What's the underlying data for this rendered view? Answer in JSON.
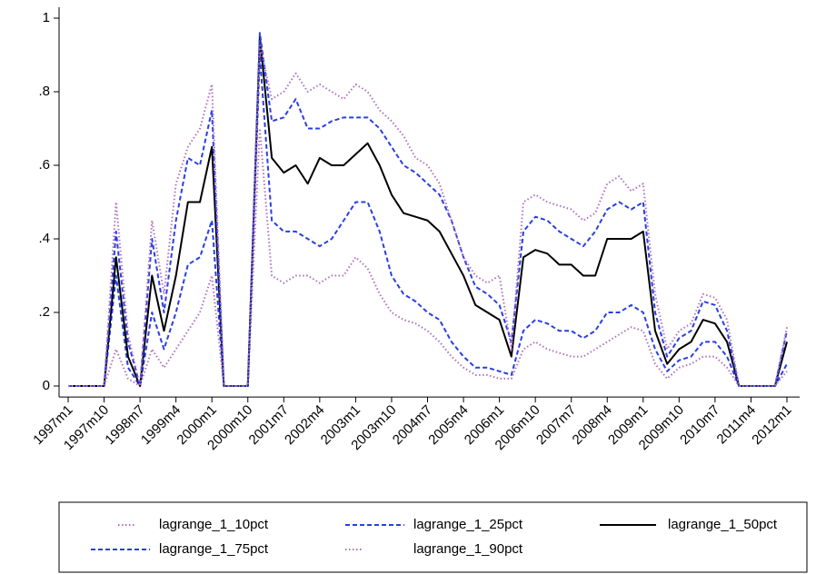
{
  "chart_data": {
    "type": "line",
    "categories": [
      "1997m1",
      null,
      null,
      "1997m10",
      null,
      null,
      "1998m7",
      null,
      null,
      "1999m4",
      null,
      null,
      "2000m1",
      null,
      null,
      "2000m10",
      null,
      null,
      "2001m7",
      null,
      null,
      "2002m4",
      null,
      null,
      "2003m1",
      null,
      null,
      "2003m10",
      null,
      null,
      "2004m7",
      null,
      null,
      "2005m4",
      null,
      null,
      "2006m1",
      null,
      null,
      "2006m10",
      null,
      null,
      "2007m7",
      null,
      null,
      "2008m4",
      null,
      null,
      "2009m1",
      null,
      null,
      "2009m10",
      null,
      null,
      "2010m7",
      null,
      null,
      "2011m4",
      null,
      null,
      "2012m1"
    ],
    "series": [
      {
        "name": "lagrange_1_10pct",
        "color": "#b070c0",
        "style": "dotted",
        "values": [
          0,
          0,
          0,
          0,
          0.1,
          0.02,
          0,
          0.1,
          0.05,
          0.1,
          0.15,
          0.2,
          0.3,
          0,
          0,
          0,
          0.7,
          0.3,
          0.28,
          0.3,
          0.3,
          0.28,
          0.3,
          0.3,
          0.35,
          0.32,
          0.25,
          0.2,
          0.18,
          0.17,
          0.15,
          0.12,
          0.08,
          0.05,
          0.03,
          0.03,
          0.02,
          0.02,
          0.1,
          0.12,
          0.1,
          0.09,
          0.08,
          0.08,
          0.1,
          0.12,
          0.14,
          0.16,
          0.15,
          0.06,
          0.02,
          0.05,
          0.06,
          0.08,
          0.08,
          0.05,
          0,
          0,
          0,
          0,
          0.04
        ]
      },
      {
        "name": "lagrange_1_25pct",
        "color": "#2a3fe0",
        "style": "dashed",
        "values": [
          0,
          0,
          0,
          0,
          0.3,
          0.05,
          0,
          0.2,
          0.1,
          0.2,
          0.33,
          0.35,
          0.45,
          0,
          0,
          0,
          0.9,
          0.45,
          0.42,
          0.42,
          0.4,
          0.38,
          0.4,
          0.45,
          0.5,
          0.5,
          0.42,
          0.3,
          0.25,
          0.23,
          0.2,
          0.18,
          0.12,
          0.08,
          0.05,
          0.05,
          0.04,
          0.03,
          0.15,
          0.18,
          0.17,
          0.15,
          0.15,
          0.13,
          0.15,
          0.2,
          0.2,
          0.22,
          0.2,
          0.1,
          0.04,
          0.07,
          0.08,
          0.12,
          0.12,
          0.08,
          0,
          0,
          0,
          0,
          0.06
        ]
      },
      {
        "name": "lagrange_1_50pct",
        "color": "#000000",
        "style": "solid",
        "values": [
          0,
          0,
          0,
          0,
          0.35,
          0.08,
          0,
          0.3,
          0.15,
          0.3,
          0.5,
          0.5,
          0.65,
          0,
          0,
          0,
          0.95,
          0.62,
          0.58,
          0.6,
          0.55,
          0.62,
          0.6,
          0.6,
          0.63,
          0.66,
          0.6,
          0.52,
          0.47,
          0.46,
          0.45,
          0.42,
          0.36,
          0.3,
          0.22,
          0.2,
          0.18,
          0.08,
          0.35,
          0.37,
          0.36,
          0.33,
          0.33,
          0.3,
          0.3,
          0.4,
          0.4,
          0.4,
          0.42,
          0.15,
          0.06,
          0.1,
          0.12,
          0.18,
          0.17,
          0.12,
          0,
          0,
          0,
          0,
          0.12
        ]
      },
      {
        "name": "lagrange_1_75pct",
        "color": "#2a3fe0",
        "style": "dashed",
        "values": [
          0,
          0,
          0,
          0,
          0.42,
          0.12,
          0,
          0.4,
          0.2,
          0.45,
          0.62,
          0.6,
          0.75,
          0,
          0,
          0,
          0.96,
          0.72,
          0.73,
          0.78,
          0.7,
          0.7,
          0.72,
          0.73,
          0.73,
          0.73,
          0.7,
          0.65,
          0.6,
          0.58,
          0.55,
          0.52,
          0.45,
          0.35,
          0.27,
          0.25,
          0.22,
          0.12,
          0.42,
          0.46,
          0.45,
          0.42,
          0.4,
          0.38,
          0.42,
          0.48,
          0.5,
          0.48,
          0.5,
          0.2,
          0.08,
          0.13,
          0.15,
          0.23,
          0.22,
          0.15,
          0,
          0,
          0,
          0,
          0.15
        ]
      },
      {
        "name": "lagrange_1_90pct",
        "color": "#b070c0",
        "style": "dotted",
        "values": [
          0,
          0,
          0,
          0,
          0.5,
          0.14,
          0,
          0.45,
          0.25,
          0.55,
          0.65,
          0.7,
          0.82,
          0,
          0,
          0,
          0.93,
          0.78,
          0.8,
          0.85,
          0.8,
          0.82,
          0.8,
          0.78,
          0.82,
          0.8,
          0.75,
          0.72,
          0.68,
          0.62,
          0.6,
          0.55,
          0.45,
          0.35,
          0.3,
          0.28,
          0.3,
          0.1,
          0.5,
          0.52,
          0.5,
          0.49,
          0.48,
          0.45,
          0.47,
          0.55,
          0.57,
          0.53,
          0.55,
          0.25,
          0.1,
          0.15,
          0.17,
          0.25,
          0.24,
          0.18,
          0,
          0,
          0,
          0,
          0.16
        ]
      }
    ],
    "ylim": [
      -0.03,
      1.03
    ],
    "yticks": [
      0,
      {
        "value": 0.2,
        "label": ".2"
      },
      {
        "value": 0.4,
        "label": ".4"
      },
      {
        "value": 0.6,
        "label": ".6"
      },
      {
        "value": 0.8,
        "label": ".8"
      },
      1
    ],
    "grid": false
  }
}
